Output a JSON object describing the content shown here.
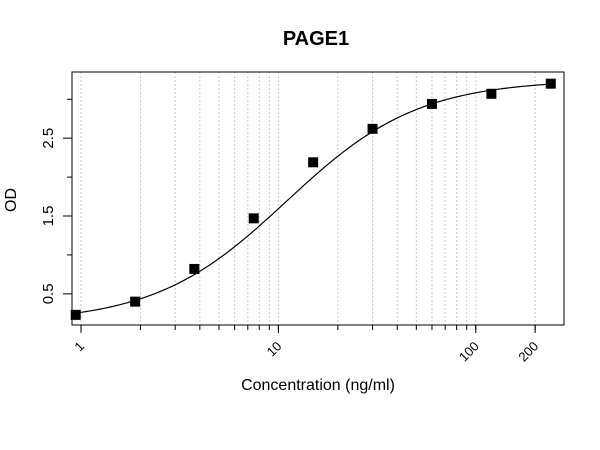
{
  "chart_data": {
    "type": "scatter",
    "title": "PAGE1",
    "xlabel": "Concentration (ng/ml)",
    "ylabel": "OD",
    "x_scale": "log10",
    "xlim": [
      0.9,
      280
    ],
    "ylim": [
      0.1,
      3.35
    ],
    "x_ticks": [
      {
        "value": 1,
        "label": "1"
      },
      {
        "value": 10,
        "label": "10"
      },
      {
        "value": 100,
        "label": "100"
      },
      {
        "value": 200,
        "label": "200"
      }
    ],
    "y_ticks": [
      {
        "value": 0.5,
        "label": "0.5"
      },
      {
        "value": 1.5,
        "label": "1.5"
      },
      {
        "value": 2.5,
        "label": "2.5"
      }
    ],
    "y_minor_ticks": [
      1.0,
      2.0,
      3.0
    ],
    "grid": "vertical dotted at log minor ticks",
    "series": [
      {
        "marker": "square",
        "x": [
          0.94,
          1.88,
          3.75,
          7.5,
          15,
          30,
          60,
          120,
          240
        ],
        "y": [
          0.23,
          0.4,
          0.82,
          1.47,
          2.19,
          2.62,
          2.94,
          3.07,
          3.2
        ]
      }
    ],
    "fit_curve": {
      "type": "4PL",
      "A": 0.13,
      "D": 3.25,
      "C": 11.0,
      "B": 1.3
    }
  }
}
